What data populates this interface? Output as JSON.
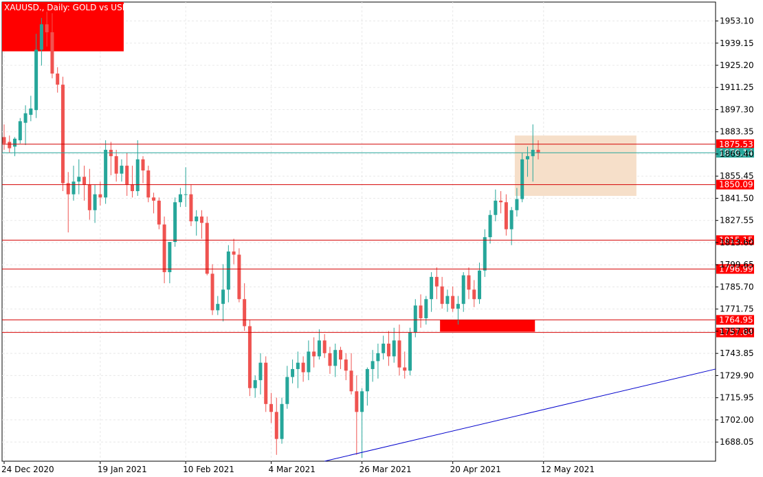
{
  "title": "XAUUSD., Daily:  GOLD vs USD",
  "colors": {
    "background": "#ffffff",
    "bull": "#26a69a",
    "bear": "#ef5350",
    "level_line": "#d40000",
    "level_label_bg": "#ff0000",
    "current_line": "#26a69a",
    "trend_line": "#0000cc",
    "zone_fill": "#f6dfc9",
    "red_box": "#ff0000"
  },
  "chart_data": {
    "type": "candlestick",
    "y_ticks": [
      "1953.10",
      "1939.15",
      "1925.20",
      "1911.25",
      "1897.30",
      "1883.35",
      "1869.40",
      "1855.45",
      "1841.50",
      "1827.55",
      "1813.60",
      "1799.65",
      "1785.70",
      "1771.75",
      "1757.80",
      "1743.85",
      "1729.90",
      "1715.95",
      "1702.00",
      "1688.05"
    ],
    "x_ticks": [
      {
        "label": "24 Dec 2020",
        "index": 0
      },
      {
        "label": "19 Jan 2021",
        "index": 18
      },
      {
        "label": "10 Feb 2021",
        "index": 34
      },
      {
        "label": "4 Mar 2021",
        "index": 50
      },
      {
        "label": "26 Mar 2021",
        "index": 67
      },
      {
        "label": "20 Apr 2021",
        "index": 84
      },
      {
        "label": "12 May 2021",
        "index": 101
      }
    ],
    "ylim": [
      1676,
      1965
    ],
    "levels": [
      {
        "label": "1875.53",
        "value": 1875.53
      },
      {
        "label": "1850.09",
        "value": 1850.09
      },
      {
        "label": "1815.15",
        "value": 1815.15
      },
      {
        "label": "1796.99",
        "value": 1796.99
      },
      {
        "label": "1764.95",
        "value": 1764.95
      },
      {
        "label": "1757.04",
        "value": 1757.04
      }
    ],
    "current_price": {
      "label": "1870.14",
      "value": 1870.14
    },
    "zones": [
      {
        "name": "supply-zone",
        "start_index": 96,
        "end_index": 118,
        "top": 1881,
        "bottom": 1843
      },
      {
        "name": "demand-box",
        "start_index": 82,
        "end_index": 99,
        "top": 1765,
        "bottom": 1757.5
      },
      {
        "name": "top-left-box",
        "start_index": 0,
        "end_index": 22,
        "top": 1965,
        "bottom": 1934
      }
    ],
    "trendline": {
      "from": {
        "index": 60,
        "price": 1676
      },
      "to": {
        "index": 138,
        "price": 1734
      }
    },
    "candles": [
      [
        1880,
        1888,
        1872,
        1876
      ],
      [
        1877,
        1881,
        1870,
        1873
      ],
      [
        1874,
        1880,
        1868,
        1879
      ],
      [
        1878,
        1892,
        1876,
        1890
      ],
      [
        1889,
        1900,
        1875,
        1895
      ],
      [
        1894,
        1906,
        1890,
        1898
      ],
      [
        1897,
        1945,
        1892,
        1935
      ],
      [
        1935,
        1955,
        1925,
        1951
      ],
      [
        1951,
        1959,
        1937,
        1946
      ],
      [
        1946,
        1958,
        1917,
        1920
      ],
      [
        1920,
        1924,
        1908,
        1913
      ],
      [
        1913,
        1918,
        1846,
        1851
      ],
      [
        1851,
        1858,
        1820,
        1844
      ],
      [
        1844,
        1862,
        1840,
        1852
      ],
      [
        1852,
        1866,
        1844,
        1855
      ],
      [
        1855,
        1862,
        1840,
        1850
      ],
      [
        1850,
        1860,
        1828,
        1834
      ],
      [
        1834,
        1850,
        1826,
        1844
      ],
      [
        1844,
        1852,
        1837,
        1842
      ],
      [
        1842,
        1878,
        1838,
        1872
      ],
      [
        1872,
        1877,
        1856,
        1868
      ],
      [
        1868,
        1872,
        1852,
        1857
      ],
      [
        1857,
        1866,
        1852,
        1862
      ],
      [
        1862,
        1870,
        1843,
        1850
      ],
      [
        1850,
        1862,
        1842,
        1846
      ],
      [
        1846,
        1878,
        1843,
        1866
      ],
      [
        1866,
        1868,
        1851,
        1859
      ],
      [
        1859,
        1862,
        1839,
        1842
      ],
      [
        1842,
        1845,
        1832,
        1840
      ],
      [
        1840,
        1842,
        1822,
        1825
      ],
      [
        1825,
        1830,
        1788,
        1795
      ],
      [
        1795,
        1812,
        1788,
        1814
      ],
      [
        1814,
        1842,
        1811,
        1839
      ],
      [
        1839,
        1848,
        1836,
        1844
      ],
      [
        1844,
        1861,
        1836,
        1844
      ],
      [
        1844,
        1850,
        1824,
        1827
      ],
      [
        1827,
        1834,
        1818,
        1830
      ],
      [
        1830,
        1834,
        1816,
        1826
      ],
      [
        1826,
        1830,
        1793,
        1794
      ],
      [
        1794,
        1800,
        1768,
        1771
      ],
      [
        1771,
        1780,
        1768,
        1775
      ],
      [
        1775,
        1800,
        1764,
        1784
      ],
      [
        1784,
        1812,
        1776,
        1808
      ],
      [
        1808,
        1816,
        1800,
        1806
      ],
      [
        1806,
        1810,
        1776,
        1778
      ],
      [
        1778,
        1788,
        1758,
        1761
      ],
      [
        1761,
        1765,
        1717,
        1722
      ],
      [
        1722,
        1730,
        1716,
        1727
      ],
      [
        1727,
        1744,
        1718,
        1738
      ],
      [
        1738,
        1742,
        1707,
        1712
      ],
      [
        1712,
        1719,
        1700,
        1707
      ],
      [
        1707,
        1716,
        1680,
        1690
      ],
      [
        1690,
        1716,
        1687,
        1712
      ],
      [
        1712,
        1736,
        1709,
        1729
      ],
      [
        1729,
        1740,
        1725,
        1734
      ],
      [
        1734,
        1745,
        1722,
        1738
      ],
      [
        1738,
        1742,
        1726,
        1732
      ],
      [
        1732,
        1752,
        1727,
        1745
      ],
      [
        1745,
        1754,
        1735,
        1742
      ],
      [
        1742,
        1759,
        1740,
        1752
      ],
      [
        1752,
        1756,
        1741,
        1744
      ],
      [
        1744,
        1748,
        1731,
        1736
      ],
      [
        1736,
        1750,
        1729,
        1746
      ],
      [
        1746,
        1748,
        1734,
        1740
      ],
      [
        1740,
        1744,
        1727,
        1733
      ],
      [
        1733,
        1744,
        1718,
        1720
      ],
      [
        1720,
        1730,
        1680,
        1707
      ],
      [
        1707,
        1722,
        1678,
        1720
      ],
      [
        1720,
        1735,
        1711,
        1734
      ],
      [
        1734,
        1746,
        1726,
        1739
      ],
      [
        1739,
        1750,
        1728,
        1744
      ],
      [
        1744,
        1755,
        1740,
        1750
      ],
      [
        1750,
        1758,
        1736,
        1742
      ],
      [
        1742,
        1760,
        1738,
        1752
      ],
      [
        1752,
        1762,
        1730,
        1735
      ],
      [
        1735,
        1745,
        1728,
        1733
      ],
      [
        1733,
        1760,
        1730,
        1757
      ],
      [
        1757,
        1778,
        1754,
        1774
      ],
      [
        1774,
        1781,
        1760,
        1766
      ],
      [
        1766,
        1780,
        1762,
        1778
      ],
      [
        1778,
        1795,
        1770,
        1792
      ],
      [
        1792,
        1798,
        1778,
        1786
      ],
      [
        1786,
        1792,
        1772,
        1775
      ],
      [
        1775,
        1784,
        1770,
        1780
      ],
      [
        1780,
        1786,
        1770,
        1772
      ],
      [
        1772,
        1780,
        1762,
        1775
      ],
      [
        1775,
        1795,
        1770,
        1793
      ],
      [
        1793,
        1798,
        1778,
        1784
      ],
      [
        1784,
        1790,
        1773,
        1778
      ],
      [
        1778,
        1801,
        1775,
        1796
      ],
      [
        1796,
        1822,
        1792,
        1817
      ],
      [
        1817,
        1834,
        1813,
        1831
      ],
      [
        1831,
        1847,
        1827,
        1840
      ],
      [
        1840,
        1846,
        1832,
        1839
      ],
      [
        1839,
        1844,
        1818,
        1822
      ],
      [
        1822,
        1836,
        1812,
        1834
      ],
      [
        1834,
        1848,
        1830,
        1841
      ],
      [
        1841,
        1870,
        1839,
        1866
      ],
      [
        1866,
        1874,
        1855,
        1868
      ],
      [
        1868,
        1888,
        1852,
        1872
      ],
      [
        1872,
        1878,
        1866,
        1870
      ]
    ]
  }
}
